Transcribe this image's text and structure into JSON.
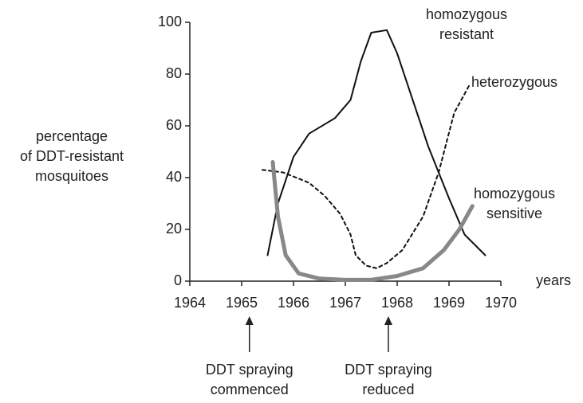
{
  "chart_data": {
    "type": "line",
    "ylabel": [
      "percentage",
      "of DDT-resistant",
      "mosquitoes"
    ],
    "xlabel": "years",
    "xlim": [
      1964,
      1970
    ],
    "xticks": [
      1964,
      1965,
      1966,
      1967,
      1968,
      1969,
      1970
    ],
    "ylim": [
      0,
      100
    ],
    "yticks": [
      0,
      20,
      40,
      60,
      80,
      100
    ],
    "series": [
      {
        "name": "homozygous resistant",
        "color": "#111111",
        "linestyle": "solid",
        "linewidth": 2,
        "x": [
          1965.5,
          1965.7,
          1966,
          1966.3,
          1966.8,
          1967.1,
          1967.3,
          1967.5,
          1967.8,
          1968,
          1968.3,
          1968.6,
          1969,
          1969.3,
          1969.7
        ],
        "values": [
          10,
          30,
          48,
          57,
          63,
          70,
          85,
          96,
          97,
          88,
          70,
          52,
          32,
          18,
          10
        ]
      },
      {
        "name": "heterozygous",
        "color": "#111111",
        "linestyle": "dashed",
        "linewidth": 2,
        "x": [
          1965.4,
          1965.8,
          1966.3,
          1966.6,
          1966.9,
          1967.1,
          1967.2,
          1967.4,
          1967.6,
          1967.8,
          1968.1,
          1968.5,
          1968.8,
          1969.1,
          1969.4
        ],
        "values": [
          43,
          42,
          38,
          33,
          26,
          18,
          10,
          6,
          5,
          7,
          12,
          25,
          42,
          65,
          76
        ]
      },
      {
        "name": "homozygous sensitive",
        "color": "#888888",
        "linestyle": "solid",
        "linewidth": 5,
        "x": [
          1965.6,
          1965.7,
          1965.85,
          1966.1,
          1966.5,
          1967,
          1967.5,
          1968,
          1968.5,
          1968.9,
          1969.2,
          1969.45
        ],
        "values": [
          46,
          25,
          10,
          3,
          1,
          0.5,
          0.5,
          2,
          5,
          12,
          20,
          29
        ]
      }
    ],
    "annotations": [
      {
        "text": "DDT spraying commenced",
        "x": 1965.15
      },
      {
        "text": "DDT spraying reduced",
        "x": 1967.83
      }
    ]
  }
}
